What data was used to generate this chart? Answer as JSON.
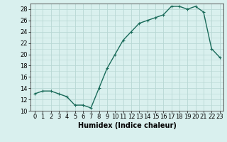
{
  "x": [
    0,
    1,
    2,
    3,
    4,
    5,
    6,
    7,
    8,
    9,
    10,
    11,
    12,
    13,
    14,
    15,
    16,
    17,
    18,
    19,
    20,
    21,
    22,
    23
  ],
  "y": [
    13,
    13.5,
    13.5,
    13,
    12.5,
    11,
    11,
    10.5,
    14,
    17.5,
    20,
    22.5,
    24,
    25.5,
    26,
    26.5,
    27,
    28.5,
    28.5,
    28,
    28.5,
    27.5,
    21,
    19.5
  ],
  "line_color": "#1a6b5a",
  "marker": "+",
  "marker_size": 3,
  "bg_color": "#d9f0ee",
  "grid_color": "#b8d8d4",
  "xlabel": "Humidex (Indice chaleur)",
  "xlabel_fontsize": 7,
  "xlim": [
    -0.5,
    23.5
  ],
  "ylim": [
    10,
    29
  ],
  "yticks": [
    10,
    12,
    14,
    16,
    18,
    20,
    22,
    24,
    26,
    28
  ],
  "xticks": [
    0,
    1,
    2,
    3,
    4,
    5,
    6,
    7,
    8,
    9,
    10,
    11,
    12,
    13,
    14,
    15,
    16,
    17,
    18,
    19,
    20,
    21,
    22,
    23
  ],
  "tick_fontsize": 6,
  "line_width": 1.0
}
